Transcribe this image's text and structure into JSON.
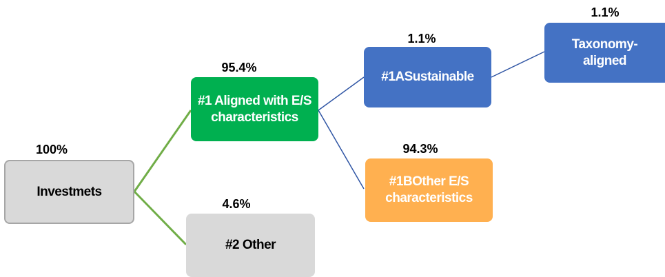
{
  "nodes": [
    {
      "label": "Investmets",
      "percent": "100%"
    },
    {
      "label": "#1 Aligned with E/S characteristics",
      "percent": "95.4%"
    },
    {
      "label": "#2 Other",
      "percent": "4.6%"
    },
    {
      "label": "#1ASustainable",
      "percent": "1.1%"
    },
    {
      "label": "#1BOther E/S characteristics",
      "percent": "94.3%"
    },
    {
      "label": "Taxonomy-aligned",
      "percent": "1.1%"
    }
  ]
}
